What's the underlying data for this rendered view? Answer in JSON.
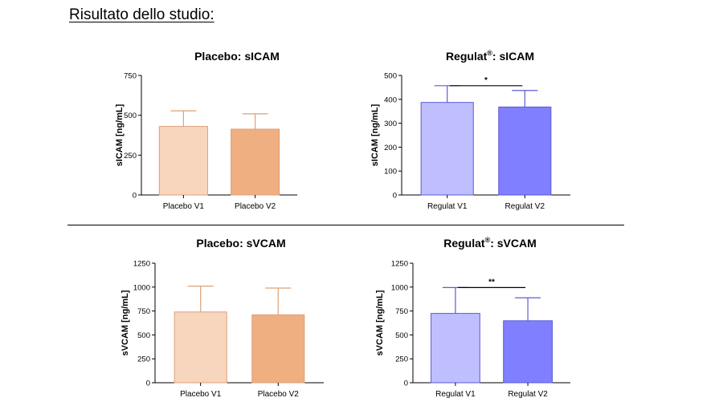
{
  "page": {
    "title": "Risultato dello studio:"
  },
  "chart_data": [
    {
      "type": "bar",
      "title": "Placebo: sICAM",
      "ylabel": "sICAM [ng/mL]",
      "categories": [
        "Placebo V1",
        "Placebo V2"
      ],
      "values": [
        430,
        413
      ],
      "error_upper": [
        528,
        509
      ],
      "ylim": [
        0,
        750
      ],
      "yticks": [
        0,
        250,
        500,
        750
      ],
      "colors": [
        "#f7d6bd",
        "#efaf80"
      ],
      "edge_color": "#dca17a",
      "significance": null
    },
    {
      "type": "bar",
      "title": "Regulat®: sICAM",
      "title_main": "Regulat",
      "title_sup": "®",
      "title_rest": ": sICAM",
      "ylabel": "sICAM [ng/mL]",
      "categories": [
        "Regulat V1",
        "Regulat V2"
      ],
      "values": [
        387,
        368
      ],
      "error_upper": [
        457,
        437
      ],
      "ylim": [
        0,
        500
      ],
      "yticks": [
        0,
        100,
        200,
        300,
        400,
        500
      ],
      "colors": [
        "#bfbfff",
        "#7f7fff"
      ],
      "edge_color": "#5b5bd6",
      "significance": "*"
    },
    {
      "type": "bar",
      "title": "Placebo: sVCAM",
      "ylabel": "sVCAM [ng/mL]",
      "categories": [
        "Placebo V1",
        "Placebo V2"
      ],
      "values": [
        740,
        710
      ],
      "error_upper": [
        1010,
        990
      ],
      "ylim": [
        0,
        1250
      ],
      "yticks": [
        0,
        250,
        500,
        750,
        1000,
        1250
      ],
      "colors": [
        "#f7d6bd",
        "#efaf80"
      ],
      "edge_color": "#dca17a",
      "significance": null
    },
    {
      "type": "bar",
      "title": "Regulat®: sVCAM",
      "title_main": "Regulat",
      "title_sup": "®",
      "title_rest": ": sVCAM",
      "ylabel": "sVCAM [ng/mL]",
      "categories": [
        "Regulat V1",
        "Regulat V2"
      ],
      "values": [
        725,
        648
      ],
      "error_upper": [
        995,
        888
      ],
      "ylim": [
        0,
        1250
      ],
      "yticks": [
        0,
        250,
        500,
        750,
        1000,
        1250
      ],
      "colors": [
        "#bfbfff",
        "#7f7fff"
      ],
      "edge_color": "#5b5bd6",
      "significance": "**"
    }
  ]
}
